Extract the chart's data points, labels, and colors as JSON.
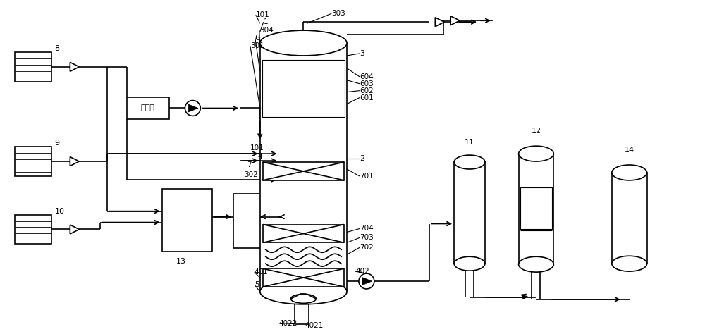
{
  "bg_color": "#ffffff",
  "line_color": "#000000",
  "fig_width": 10.0,
  "fig_height": 4.74
}
